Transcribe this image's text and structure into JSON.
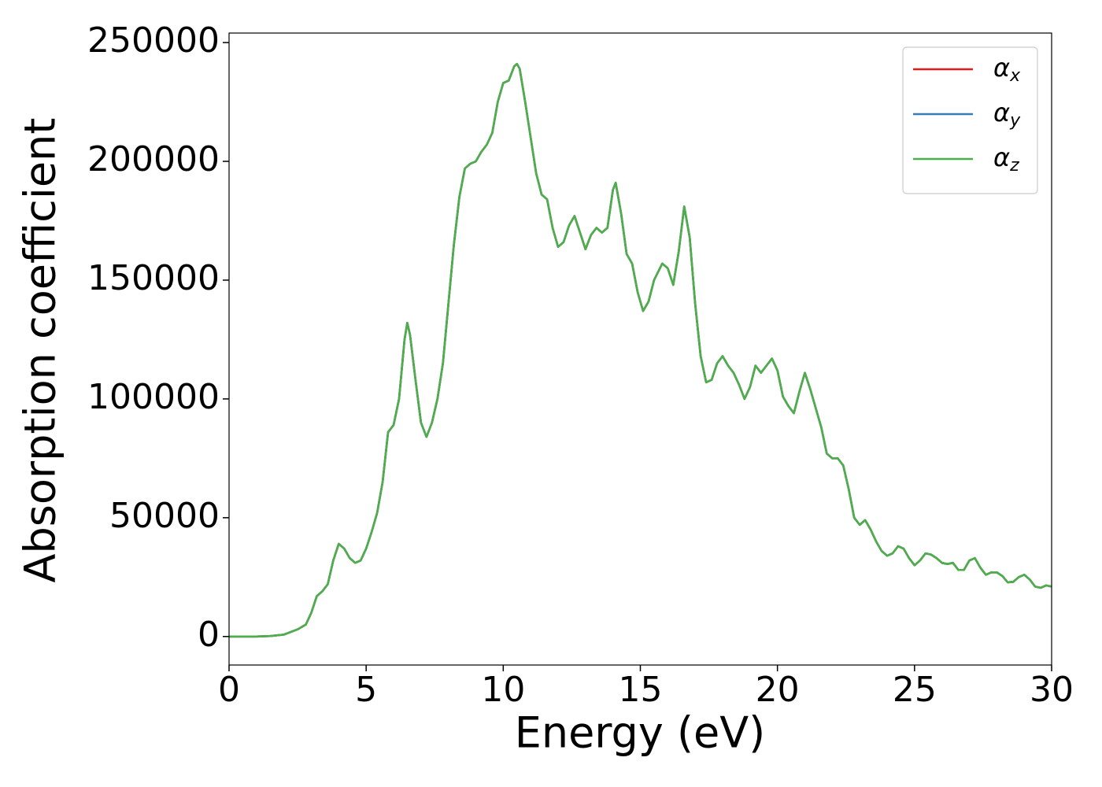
{
  "chart_data": {
    "type": "line",
    "xlabel": "Energy (eV)",
    "ylabel": "Absorption coefficient",
    "xlim": [
      0,
      30
    ],
    "xticks": [
      0,
      5,
      10,
      15,
      20,
      25,
      30
    ],
    "ylim": [
      -12000,
      254000
    ],
    "yticks": [
      0,
      50000,
      100000,
      150000,
      200000,
      250000
    ],
    "grid": false,
    "legend": "upper right",
    "x": [
      0,
      1,
      1.5,
      2,
      2.5,
      2.8,
      3.0,
      3.2,
      3.4,
      3.6,
      3.8,
      4.0,
      4.2,
      4.4,
      4.6,
      4.8,
      5.0,
      5.2,
      5.4,
      5.6,
      5.8,
      6.0,
      6.2,
      6.4,
      6.5,
      6.6,
      6.8,
      7.0,
      7.2,
      7.4,
      7.6,
      7.8,
      8.0,
      8.2,
      8.4,
      8.6,
      8.8,
      9.0,
      9.2,
      9.4,
      9.6,
      9.8,
      10.0,
      10.2,
      10.4,
      10.5,
      10.6,
      10.8,
      11.0,
      11.2,
      11.4,
      11.6,
      11.8,
      12.0,
      12.2,
      12.4,
      12.6,
      12.8,
      13.0,
      13.2,
      13.4,
      13.6,
      13.8,
      14.0,
      14.1,
      14.3,
      14.5,
      14.7,
      14.9,
      15.1,
      15.3,
      15.5,
      15.8,
      16.0,
      16.2,
      16.4,
      16.6,
      16.8,
      17.0,
      17.2,
      17.4,
      17.6,
      17.8,
      18.0,
      18.2,
      18.4,
      18.6,
      18.8,
      19.0,
      19.2,
      19.4,
      19.6,
      19.8,
      20.0,
      20.2,
      20.4,
      20.6,
      20.8,
      21.0,
      21.2,
      21.4,
      21.6,
      21.8,
      22.0,
      22.2,
      22.4,
      22.6,
      22.8,
      23.0,
      23.2,
      23.4,
      23.6,
      23.8,
      24.0,
      24.2,
      24.4,
      24.6,
      24.8,
      25.0,
      25.2,
      25.4,
      25.6,
      25.8,
      26.0,
      26.2,
      26.4,
      26.6,
      26.8,
      27.0,
      27.2,
      27.4,
      27.6,
      27.8,
      28.0,
      28.2,
      28.4,
      28.6,
      28.8,
      29.0,
      29.2,
      29.4,
      29.6,
      29.8,
      30.0
    ],
    "series": [
      {
        "name": "αx",
        "color": "#e41a1c",
        "values": [
          0,
          0,
          200,
          800,
          3000,
          5000,
          10000,
          17000,
          19000,
          22000,
          32000,
          39000,
          37000,
          33000,
          31000,
          32000,
          37000,
          44000,
          52000,
          65000,
          86000,
          89000,
          100000,
          125000,
          132000,
          127000,
          108000,
          90000,
          84000,
          90000,
          100000,
          115000,
          140000,
          165000,
          185000,
          197000,
          199000,
          200000,
          204000,
          207000,
          212000,
          225000,
          233000,
          234000,
          240000,
          241000,
          239000,
          225000,
          210000,
          195000,
          186000,
          184000,
          172000,
          164000,
          166000,
          173000,
          177000,
          170000,
          163000,
          169000,
          172000,
          170000,
          172000,
          188000,
          191000,
          178000,
          161000,
          157000,
          145000,
          137000,
          141000,
          150000,
          157000,
          155000,
          148000,
          162000,
          181000,
          168000,
          140000,
          118000,
          107000,
          108000,
          115000,
          118000,
          114000,
          111000,
          106000,
          100000,
          105000,
          114000,
          111000,
          114000,
          117000,
          112000,
          101000,
          97000,
          94000,
          103000,
          111000,
          104000,
          96000,
          88000,
          77000,
          75000,
          75000,
          72000,
          62000,
          50000,
          47000,
          49000,
          45000,
          40000,
          36000,
          34000,
          35000,
          38000,
          37000,
          33000,
          30000,
          32000,
          35000,
          34500,
          33000,
          31000,
          30500,
          31000,
          28000,
          28000,
          32000,
          33000,
          29000,
          26000,
          27000,
          27000,
          25500,
          22800,
          23000,
          25000,
          26000,
          24000,
          21000,
          20500,
          21500,
          21000
        ]
      },
      {
        "name": "αy",
        "color": "#377eb8",
        "values": [
          0,
          0,
          200,
          800,
          3000,
          5000,
          10000,
          17000,
          19000,
          22000,
          32000,
          39000,
          37000,
          33000,
          31000,
          32000,
          37000,
          44000,
          52000,
          65000,
          86000,
          89000,
          100000,
          125000,
          132000,
          127000,
          108000,
          90000,
          84000,
          90000,
          100000,
          115000,
          140000,
          165000,
          185000,
          197000,
          199000,
          200000,
          204000,
          207000,
          212000,
          225000,
          233000,
          234000,
          240000,
          241000,
          239000,
          225000,
          210000,
          195000,
          186000,
          184000,
          172000,
          164000,
          166000,
          173000,
          177000,
          170000,
          163000,
          169000,
          172000,
          170000,
          172000,
          188000,
          191000,
          178000,
          161000,
          157000,
          145000,
          137000,
          141000,
          150000,
          157000,
          155000,
          148000,
          162000,
          181000,
          168000,
          140000,
          118000,
          107000,
          108000,
          115000,
          118000,
          114000,
          111000,
          106000,
          100000,
          105000,
          114000,
          111000,
          114000,
          117000,
          112000,
          101000,
          97000,
          94000,
          103000,
          111000,
          104000,
          96000,
          88000,
          77000,
          75000,
          75000,
          72000,
          62000,
          50000,
          47000,
          49000,
          45000,
          40000,
          36000,
          34000,
          35000,
          38000,
          37000,
          33000,
          30000,
          32000,
          35000,
          34500,
          33000,
          31000,
          30500,
          31000,
          28000,
          28000,
          32000,
          33000,
          29000,
          26000,
          27000,
          27000,
          25500,
          22800,
          23000,
          25000,
          26000,
          24000,
          21000,
          20500,
          21500,
          21000
        ]
      },
      {
        "name": "αz",
        "color": "#4daf4a",
        "values": [
          0,
          0,
          200,
          800,
          3000,
          5000,
          10000,
          17000,
          19000,
          22000,
          32000,
          39000,
          37000,
          33000,
          31000,
          32000,
          37000,
          44000,
          52000,
          65000,
          86000,
          89000,
          100000,
          125000,
          132000,
          127000,
          108000,
          90000,
          84000,
          90000,
          100000,
          115000,
          140000,
          165000,
          185000,
          197000,
          199000,
          200000,
          204000,
          207000,
          212000,
          225000,
          233000,
          234000,
          240000,
          241000,
          239000,
          225000,
          210000,
          195000,
          186000,
          184000,
          172000,
          164000,
          166000,
          173000,
          177000,
          170000,
          163000,
          169000,
          172000,
          170000,
          172000,
          188000,
          191000,
          178000,
          161000,
          157000,
          145000,
          137000,
          141000,
          150000,
          157000,
          155000,
          148000,
          162000,
          181000,
          168000,
          140000,
          118000,
          107000,
          108000,
          115000,
          118000,
          114000,
          111000,
          106000,
          100000,
          105000,
          114000,
          111000,
          114000,
          117000,
          112000,
          101000,
          97000,
          94000,
          103000,
          111000,
          104000,
          96000,
          88000,
          77000,
          75000,
          75000,
          72000,
          62000,
          50000,
          47000,
          49000,
          45000,
          40000,
          36000,
          34000,
          35000,
          38000,
          37000,
          33000,
          30000,
          32000,
          35000,
          34500,
          33000,
          31000,
          30500,
          31000,
          28000,
          28000,
          32000,
          33000,
          29000,
          26000,
          27000,
          27000,
          25500,
          22800,
          23000,
          25000,
          26000,
          24000,
          21000,
          20500,
          21500,
          21000
        ]
      }
    ]
  }
}
